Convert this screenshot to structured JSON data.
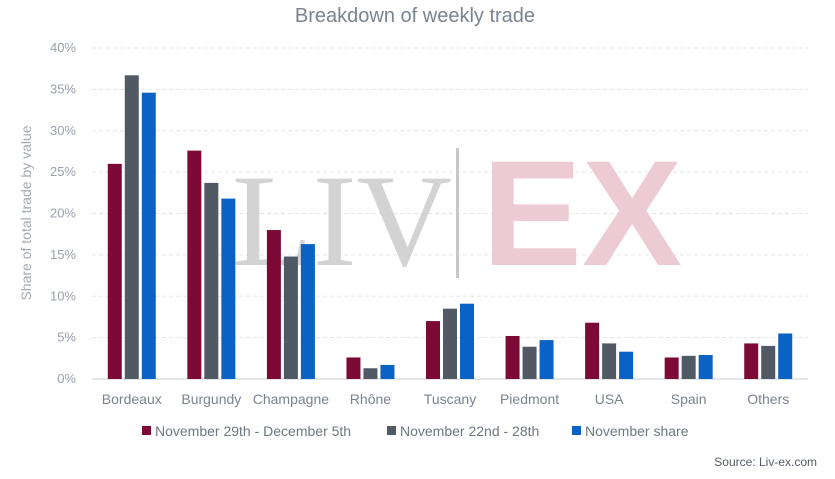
{
  "watermark": {
    "left": "LIV",
    "right": "EX"
  },
  "source": "Source: Liv-ex.com",
  "chart_data": {
    "type": "bar",
    "title": "Breakdown of weekly trade",
    "xlabel": "",
    "ylabel": "Share of total trade by value",
    "ylim": [
      0,
      40
    ],
    "yticks": [
      0,
      5,
      10,
      15,
      20,
      25,
      30,
      35,
      40
    ],
    "ytick_labels": [
      "0%",
      "5%",
      "10%",
      "15%",
      "20%",
      "25%",
      "30%",
      "35%",
      "40%"
    ],
    "grid": true,
    "legend_position": "bottom",
    "categories": [
      "Bordeaux",
      "Burgundy",
      "Champagne",
      "Rhône",
      "Tuscany",
      "Piedmont",
      "USA",
      "Spain",
      "Others"
    ],
    "series": [
      {
        "name": "November 29th - December 5th",
        "color": "#7d0a36",
        "values": [
          26.0,
          27.6,
          18.0,
          2.6,
          7.0,
          5.2,
          6.8,
          2.6,
          4.3
        ]
      },
      {
        "name": "November 22nd - 28th",
        "color": "#515a64",
        "values": [
          36.7,
          23.7,
          14.8,
          1.3,
          8.5,
          3.9,
          4.3,
          2.8,
          4.0
        ]
      },
      {
        "name": "November share",
        "color": "#0a62c4",
        "values": [
          34.6,
          21.8,
          16.3,
          1.7,
          9.1,
          4.7,
          3.3,
          2.9,
          5.5
        ]
      }
    ]
  }
}
